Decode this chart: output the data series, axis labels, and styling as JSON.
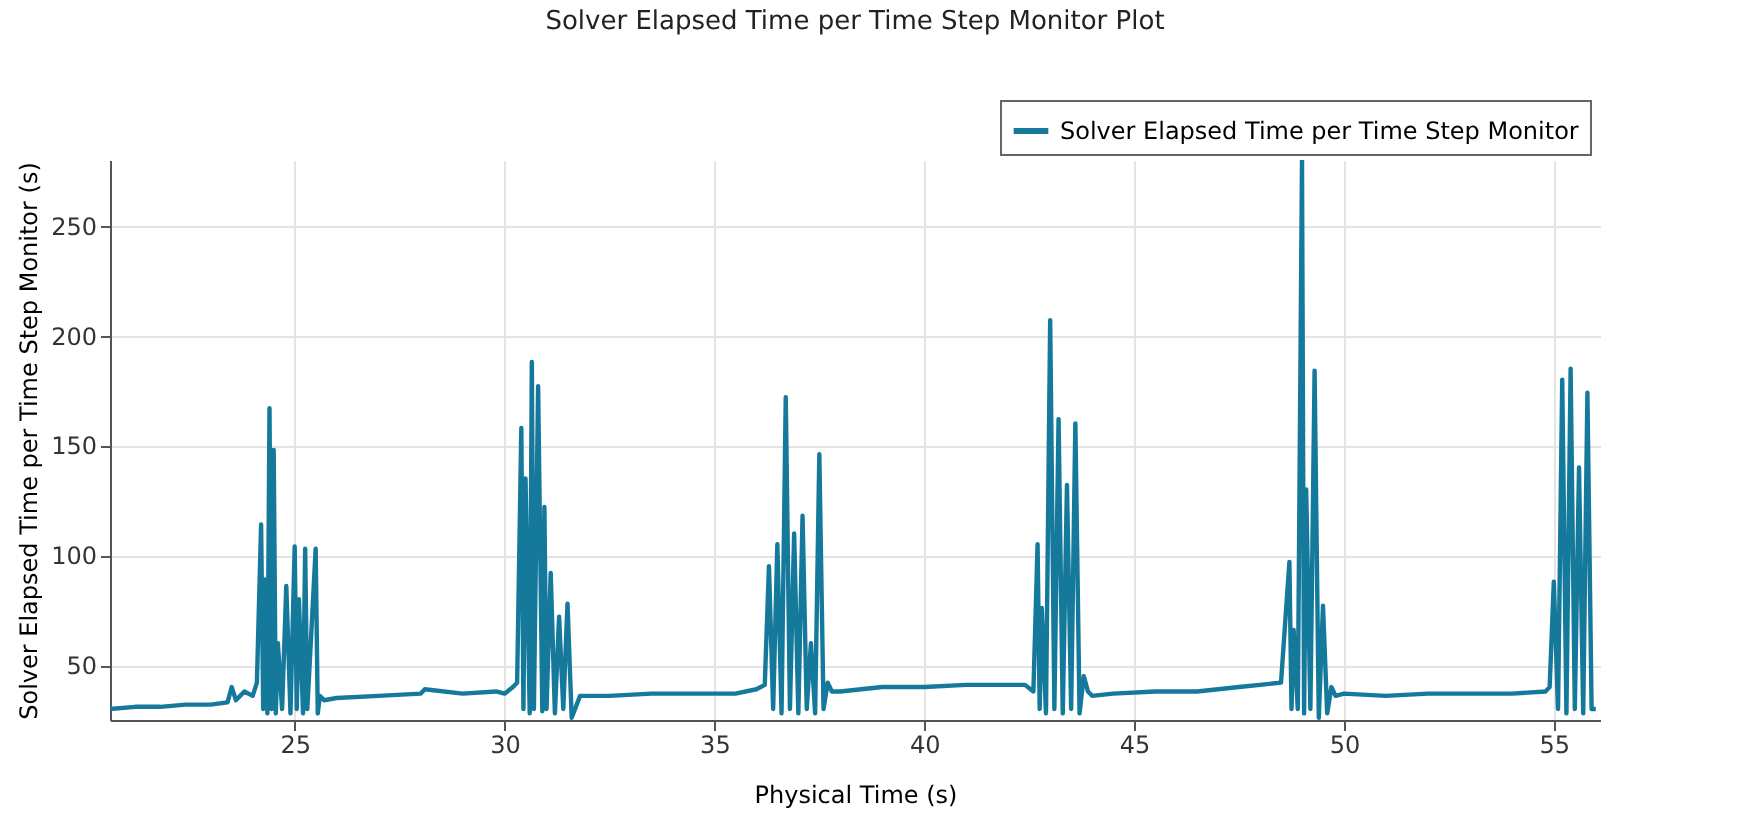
{
  "chart_data": {
    "type": "line",
    "title": "Solver Elapsed Time per Time Step Monitor Plot",
    "xlabel": "Physical Time (s)",
    "ylabel": "Solver Elapsed Time per Time Step Monitor (s)",
    "xlim": [
      20.6,
      56.1
    ],
    "xticks": [
      25,
      30,
      35,
      40,
      45,
      50,
      55
    ],
    "ylim": [
      25,
      280
    ],
    "yticks": [
      50,
      100,
      150,
      200,
      250
    ],
    "grid": true,
    "legend": "top right",
    "line_style": "solid",
    "series": [
      {
        "name": "Solver Elapsed Time per Time Step Monitor",
        "color": "#15799b",
        "x": [
          20.6,
          21.2,
          21.8,
          22.4,
          23.0,
          23.4,
          23.5,
          23.6,
          23.8,
          24.0,
          24.1,
          24.2,
          24.25,
          24.3,
          24.35,
          24.4,
          24.45,
          24.5,
          24.55,
          24.6,
          24.7,
          24.8,
          24.9,
          25.0,
          25.05,
          25.1,
          25.2,
          25.25,
          25.3,
          25.4,
          25.5,
          25.55,
          25.6,
          25.7,
          26.0,
          27.0,
          28.0,
          28.1,
          29.0,
          29.8,
          30.0,
          30.2,
          30.3,
          30.4,
          30.45,
          30.5,
          30.6,
          30.65,
          30.7,
          30.8,
          30.9,
          30.95,
          31.0,
          31.1,
          31.2,
          31.3,
          31.4,
          31.5,
          31.6,
          31.8,
          32.5,
          33.5,
          34.5,
          35.5,
          36.0,
          36.2,
          36.3,
          36.4,
          36.5,
          36.6,
          36.7,
          36.8,
          36.9,
          37.0,
          37.1,
          37.2,
          37.3,
          37.4,
          37.5,
          37.6,
          37.7,
          37.8,
          38.0,
          39.0,
          40.0,
          41.0,
          42.0,
          42.4,
          42.6,
          42.7,
          42.75,
          42.8,
          42.9,
          43.0,
          43.1,
          43.2,
          43.3,
          43.4,
          43.5,
          43.6,
          43.7,
          43.8,
          43.9,
          44.0,
          44.5,
          45.5,
          46.5,
          47.5,
          48.5,
          48.7,
          48.75,
          48.8,
          48.9,
          49.0,
          49.05,
          49.1,
          49.2,
          49.3,
          49.4,
          49.5,
          49.6,
          49.7,
          49.8,
          50.0,
          51.0,
          52.0,
          53.0,
          54.0,
          54.8,
          54.9,
          55.0,
          55.1,
          55.2,
          55.3,
          55.4,
          55.5,
          55.6,
          55.7,
          55.8,
          55.9,
          56.0
        ],
        "values": [
          30,
          31,
          31,
          32,
          32,
          33,
          40,
          34,
          38,
          36,
          42,
          114,
          30,
          89,
          28,
          167,
          30,
          148,
          28,
          60,
          30,
          86,
          28,
          104,
          30,
          80,
          28,
          103,
          30,
          66,
          103,
          28,
          36,
          34,
          35,
          36,
          37,
          39,
          37,
          38,
          37,
          40,
          42,
          158,
          30,
          135,
          28,
          188,
          30,
          177,
          29,
          122,
          30,
          92,
          28,
          72,
          30,
          78,
          26,
          36,
          36,
          37,
          37,
          37,
          39,
          41,
          95,
          30,
          105,
          28,
          172,
          30,
          110,
          28,
          118,
          30,
          60,
          28,
          146,
          30,
          42,
          38,
          38,
          40,
          40,
          41,
          41,
          41,
          38,
          105,
          30,
          76,
          28,
          207,
          30,
          162,
          28,
          132,
          30,
          160,
          28,
          45,
          38,
          36,
          37,
          38,
          38,
          40,
          42,
          97,
          30,
          66,
          30,
          280,
          28,
          130,
          30,
          184,
          26,
          77,
          28,
          40,
          36,
          37,
          36,
          37,
          37,
          37,
          38,
          40,
          88,
          30,
          180,
          28,
          185,
          30,
          140,
          28,
          174,
          30,
          30
        ]
      }
    ]
  }
}
